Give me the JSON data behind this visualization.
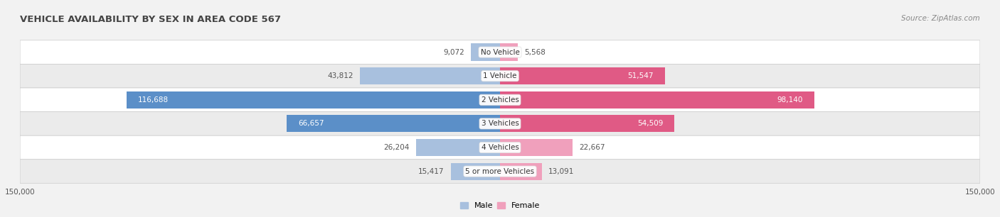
{
  "title": "VEHICLE AVAILABILITY BY SEX IN AREA CODE 567",
  "source": "Source: ZipAtlas.com",
  "categories": [
    "No Vehicle",
    "1 Vehicle",
    "2 Vehicles",
    "3 Vehicles",
    "4 Vehicles",
    "5 or more Vehicles"
  ],
  "male_values": [
    9072,
    43812,
    116688,
    66657,
    26204,
    15417
  ],
  "female_values": [
    5568,
    51547,
    98140,
    54509,
    22667,
    13091
  ],
  "male_color": "#a8c0de",
  "female_color": "#f0a0bc",
  "male_color_dark": "#5b8fc8",
  "female_color_dark": "#e05a85",
  "male_label": "Male",
  "female_label": "Female",
  "xlim": 150000,
  "row_colors": [
    "#ffffff",
    "#ebebeb",
    "#ffffff",
    "#ebebeb",
    "#ffffff",
    "#ebebeb"
  ],
  "background_color": "#f2f2f2",
  "title_fontsize": 9.5,
  "source_fontsize": 7.5,
  "value_fontsize": 7.5,
  "cat_fontsize": 7.5,
  "axis_fontsize": 7.5,
  "legend_fontsize": 8,
  "large_threshold": 50000
}
